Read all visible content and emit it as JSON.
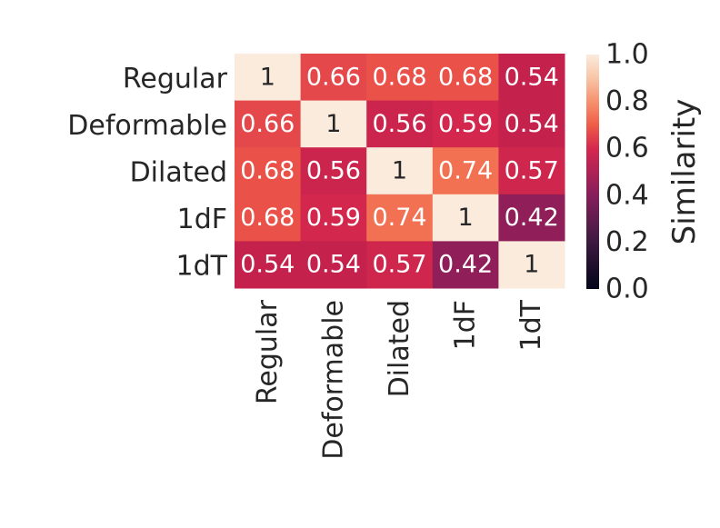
{
  "chart_data": {
    "type": "heatmap",
    "row_labels": [
      "Regular",
      "Deformable",
      "Dilated",
      "1dF",
      "1dT"
    ],
    "col_labels": [
      "Regular",
      "Deformable",
      "Dilated",
      "1dF",
      "1dT"
    ],
    "values": [
      [
        1,
        0.66,
        0.68,
        0.68,
        0.54
      ],
      [
        0.66,
        1,
        0.56,
        0.59,
        0.54
      ],
      [
        0.68,
        0.56,
        1,
        0.74,
        0.57
      ],
      [
        0.68,
        0.59,
        0.74,
        1,
        0.42
      ],
      [
        0.54,
        0.54,
        0.57,
        0.42,
        1
      ]
    ],
    "annotations": [
      [
        "1",
        "0.66",
        "0.68",
        "0.68",
        "0.54"
      ],
      [
        "0.66",
        "1",
        "0.56",
        "0.59",
        "0.54"
      ],
      [
        "0.68",
        "0.56",
        "1",
        "0.74",
        "0.57"
      ],
      [
        "0.68",
        "0.59",
        "0.74",
        "1",
        "0.42"
      ],
      [
        "0.54",
        "0.54",
        "0.57",
        "0.42",
        "1"
      ]
    ],
    "colorbar": {
      "label": "Similarity",
      "range": [
        0.0,
        1.0
      ],
      "ticks": [
        "0.0",
        "0.2",
        "0.4",
        "0.6",
        "0.8",
        "1.0"
      ],
      "colormap": "rocket"
    }
  }
}
